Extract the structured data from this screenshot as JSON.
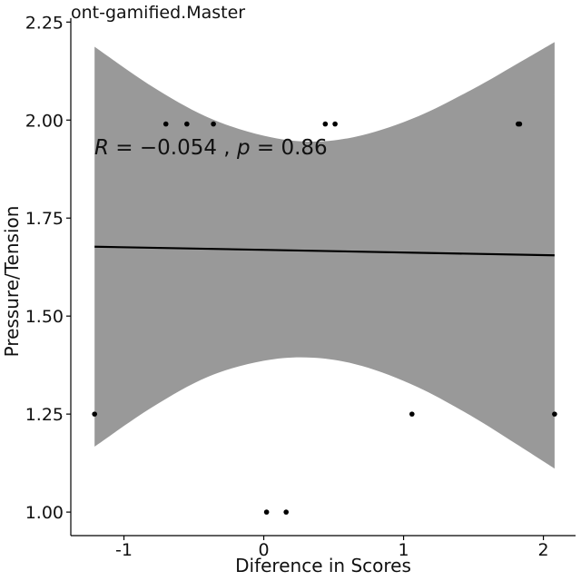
{
  "chart_data": {
    "type": "scatter",
    "title": "ont-gamified.Master",
    "xlabel": "Diference in Scores",
    "ylabel": "Pressure/Tension",
    "xlim": [
      -1.38,
      2.23
    ],
    "ylim": [
      0.94,
      2.26
    ],
    "xticks": [
      -1,
      0,
      1,
      2
    ],
    "xtick_labels": [
      "-1",
      "0",
      "1",
      "2"
    ],
    "yticks": [
      1.0,
      1.25,
      1.5,
      1.75,
      2.0,
      2.25
    ],
    "ytick_labels": [
      "1.00",
      "1.25",
      "1.50",
      "1.75",
      "2.00",
      "2.25"
    ],
    "grid": false,
    "points": [
      {
        "x": -1.21,
        "y": 1.25
      },
      {
        "x": -0.7,
        "y": 1.99
      },
      {
        "x": -0.55,
        "y": 1.99
      },
      {
        "x": -0.36,
        "y": 1.99
      },
      {
        "x": 0.02,
        "y": 1.0
      },
      {
        "x": 0.16,
        "y": 1.0
      },
      {
        "x": 0.44,
        "y": 1.99
      },
      {
        "x": 0.51,
        "y": 1.99
      },
      {
        "x": 1.06,
        "y": 1.25
      },
      {
        "x": 1.82,
        "y": 1.99
      },
      {
        "x": 1.83,
        "y": 1.99
      },
      {
        "x": 2.08,
        "y": 1.25
      }
    ],
    "regression_line": {
      "x": [
        -1.21,
        2.08
      ],
      "y": [
        1.677,
        1.655
      ]
    },
    "confidence_band": {
      "x": [
        -1.21,
        -0.8,
        -0.4,
        0.0,
        0.35,
        0.7,
        1.1,
        1.5,
        1.8,
        2.08
      ],
      "upper": [
        2.187,
        2.086,
        2.007,
        1.96,
        1.945,
        1.961,
        2.009,
        2.08,
        2.141,
        2.199
      ],
      "lower": [
        1.167,
        1.267,
        1.345,
        1.386,
        1.394,
        1.373,
        1.319,
        1.242,
        1.175,
        1.111
      ]
    },
    "colors": {
      "band": "#999999",
      "points": "#000000",
      "line": "#000000"
    }
  },
  "annotation": {
    "r_label": "R",
    "r_value": " = −0.054 , ",
    "p_label": "p",
    "p_value": " = 0.86"
  }
}
